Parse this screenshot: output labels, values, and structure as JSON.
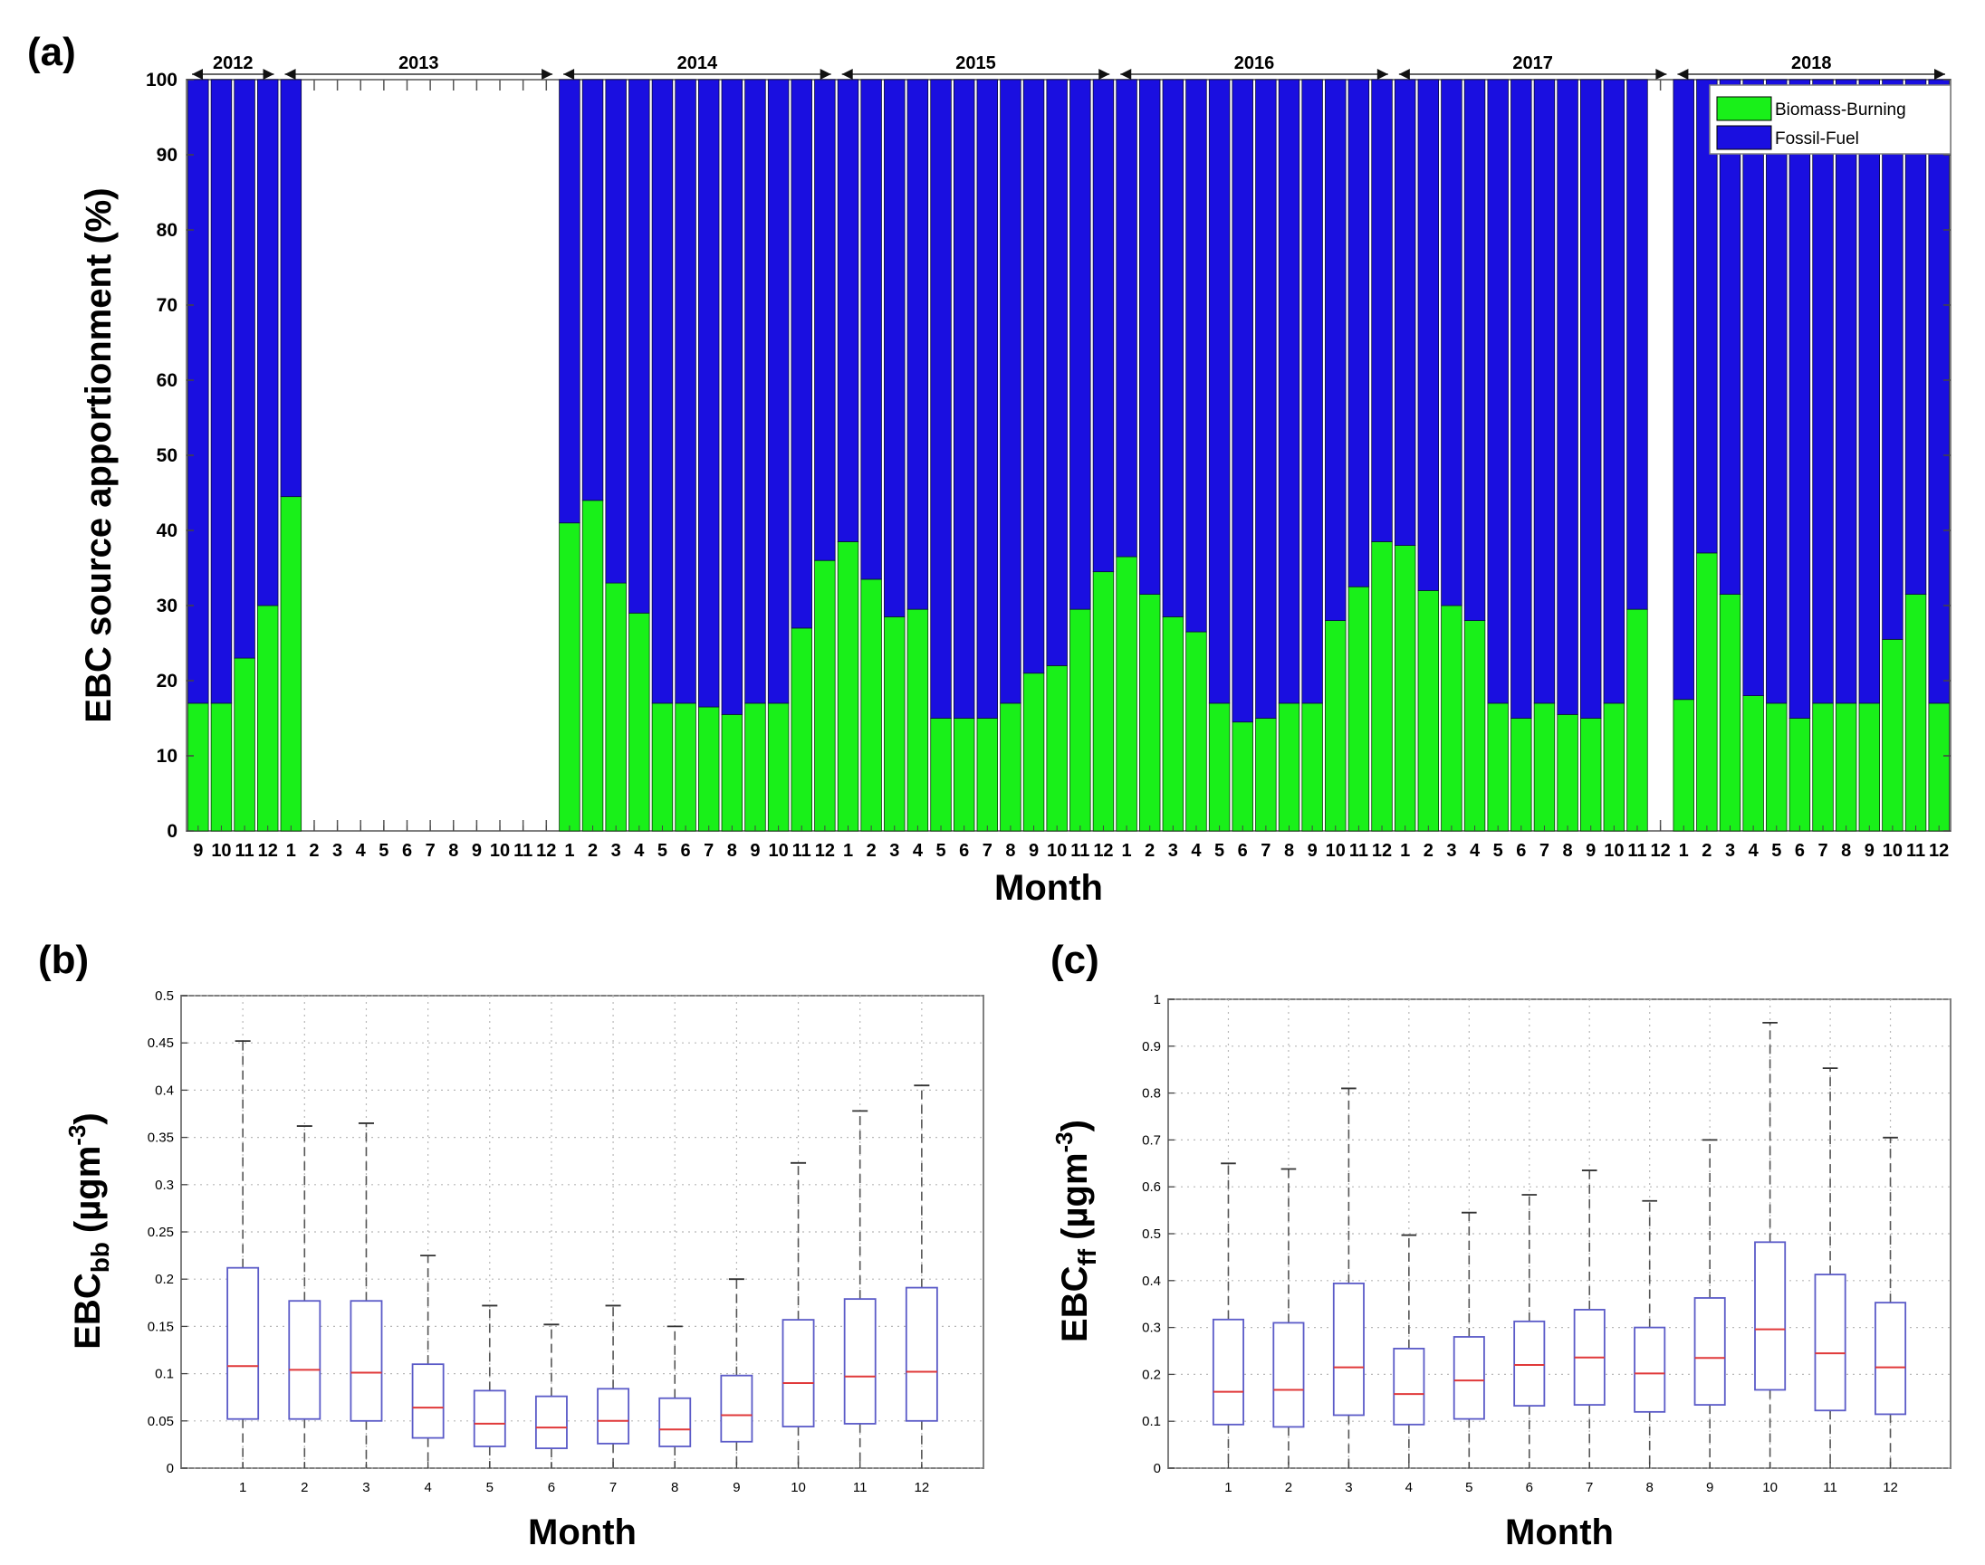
{
  "figure": {
    "panel_a_label": "(a)",
    "panel_b_label": "(b)",
    "panel_c_label": "(c)",
    "colors": {
      "biomass": "#19f019",
      "fossil": "#1a0fe0",
      "box": "#5b5bc8",
      "median": "#e0393a"
    }
  },
  "chart_data": [
    {
      "type": "bar",
      "stacked": true,
      "title": "",
      "ylabel": "EBC source apportionment (%)",
      "xlabel": "Month",
      "ylim": [
        0,
        100
      ],
      "yticks": [
        "0",
        "10",
        "20",
        "30",
        "40",
        "50",
        "60",
        "70",
        "80",
        "90",
        "100"
      ],
      "year_spans": [
        {
          "label": "2012",
          "start": 0,
          "end": 4
        },
        {
          "label": "2013",
          "start": 4,
          "end": 16
        },
        {
          "label": "2014",
          "start": 16,
          "end": 28
        },
        {
          "label": "2015",
          "start": 28,
          "end": 40
        },
        {
          "label": "2016",
          "start": 40,
          "end": 52
        },
        {
          "label": "2017",
          "start": 52,
          "end": 64
        },
        {
          "label": "2018",
          "start": 64,
          "end": 76
        }
      ],
      "categories": [
        "9",
        "10",
        "11",
        "12",
        "1",
        "2",
        "3",
        "4",
        "5",
        "6",
        "7",
        "8",
        "9",
        "10",
        "11",
        "12",
        "1",
        "2",
        "3",
        "4",
        "5",
        "6",
        "7",
        "8",
        "9",
        "10",
        "11",
        "12",
        "1",
        "2",
        "3",
        "4",
        "5",
        "6",
        "7",
        "8",
        "9",
        "10",
        "11",
        "12",
        "1",
        "2",
        "3",
        "4",
        "5",
        "6",
        "7",
        "8",
        "9",
        "10",
        "11",
        "12",
        "1",
        "2",
        "3",
        "4",
        "5",
        "6",
        "7",
        "8",
        "9",
        "10",
        "11",
        "12",
        "1",
        "2",
        "3",
        "4",
        "5",
        "6",
        "7",
        "8",
        "9",
        "10",
        "11",
        "12"
      ],
      "series": [
        {
          "name": "Biomass-Burning",
          "values": [
            17,
            17,
            23,
            30,
            44.5,
            null,
            null,
            null,
            null,
            null,
            null,
            null,
            null,
            null,
            null,
            null,
            41,
            44,
            33,
            29,
            17,
            17,
            16.5,
            15.5,
            17,
            17,
            27,
            36,
            38.5,
            33.5,
            28.5,
            29.5,
            15,
            15,
            15,
            17,
            21,
            22,
            29.5,
            34.5,
            36.5,
            31.5,
            28.5,
            26.5,
            17,
            14.5,
            15,
            17,
            17,
            28,
            32.5,
            38.5,
            38,
            32,
            30,
            28,
            17,
            15,
            17,
            15.5,
            15,
            17,
            29.5,
            null,
            17.5,
            37,
            31.5,
            18,
            17,
            15,
            17,
            17,
            17,
            25.5,
            31.5,
            17
          ]
        },
        {
          "name": "Fossil-Fuel",
          "values": [
            83,
            83,
            77,
            70,
            55.5,
            null,
            null,
            null,
            null,
            null,
            null,
            null,
            null,
            null,
            null,
            null,
            59,
            56,
            67,
            71,
            83,
            83,
            83.5,
            84.5,
            83,
            83,
            73,
            64,
            61.5,
            66.5,
            71.5,
            70.5,
            85,
            85,
            85,
            83,
            79,
            78,
            70.5,
            65.5,
            63.5,
            68.5,
            71.5,
            73.5,
            83,
            85.5,
            85,
            83,
            83,
            72,
            67.5,
            61.5,
            62,
            68,
            70,
            72,
            83,
            85,
            83,
            84.5,
            85,
            83,
            70.5,
            null,
            82.5,
            63,
            68.5,
            82,
            83,
            85,
            83,
            83,
            83,
            74.5,
            68.5,
            83
          ]
        }
      ]
    },
    {
      "type": "box",
      "title": "",
      "ylabel": "EBCbb (µgm-3)",
      "ylabel_main": "EBC",
      "ylabel_sub": "bb",
      "ylabel_unit": "(µgm",
      "ylabel_sup": "-3",
      "ylabel_close": ")",
      "xlabel": "Month",
      "ylim": [
        0,
        0.5
      ],
      "yticks": [
        "0",
        "0.05",
        "0.1",
        "0.15",
        "0.2",
        "0.25",
        "0.3",
        "0.35",
        "0.4",
        "0.45",
        "0.5"
      ],
      "categories": [
        "1",
        "2",
        "3",
        "4",
        "5",
        "6",
        "7",
        "8",
        "9",
        "10",
        "11",
        "12"
      ],
      "boxes": [
        {
          "whisker_low": 0.0,
          "q1": 0.052,
          "median": 0.108,
          "q3": 0.212,
          "whisker_high": 0.452
        },
        {
          "whisker_low": 0.0,
          "q1": 0.052,
          "median": 0.104,
          "q3": 0.177,
          "whisker_high": 0.362
        },
        {
          "whisker_low": 0.0,
          "q1": 0.05,
          "median": 0.101,
          "q3": 0.177,
          "whisker_high": 0.365
        },
        {
          "whisker_low": 0.0,
          "q1": 0.032,
          "median": 0.064,
          "q3": 0.11,
          "whisker_high": 0.225
        },
        {
          "whisker_low": 0.0,
          "q1": 0.023,
          "median": 0.047,
          "q3": 0.082,
          "whisker_high": 0.172
        },
        {
          "whisker_low": 0.0,
          "q1": 0.021,
          "median": 0.043,
          "q3": 0.076,
          "whisker_high": 0.152
        },
        {
          "whisker_low": 0.0,
          "q1": 0.026,
          "median": 0.05,
          "q3": 0.084,
          "whisker_high": 0.172
        },
        {
          "whisker_low": 0.0,
          "q1": 0.023,
          "median": 0.041,
          "q3": 0.074,
          "whisker_high": 0.15
        },
        {
          "whisker_low": 0.0,
          "q1": 0.028,
          "median": 0.056,
          "q3": 0.098,
          "whisker_high": 0.2
        },
        {
          "whisker_low": 0.0,
          "q1": 0.044,
          "median": 0.09,
          "q3": 0.157,
          "whisker_high": 0.323
        },
        {
          "whisker_low": 0.0,
          "q1": 0.047,
          "median": 0.097,
          "q3": 0.179,
          "whisker_high": 0.378
        },
        {
          "whisker_low": 0.0,
          "q1": 0.05,
          "median": 0.102,
          "q3": 0.191,
          "whisker_high": 0.405
        }
      ]
    },
    {
      "type": "box",
      "title": "",
      "ylabel": "EBCff (µgm-3)",
      "ylabel_main": "EBC",
      "ylabel_sub": "ff",
      "ylabel_unit": "(µgm",
      "ylabel_sup": "-3",
      "ylabel_close": ")",
      "xlabel": "Month",
      "ylim": [
        0,
        1
      ],
      "yticks": [
        "0",
        "0.1",
        "0.2",
        "0.3",
        "0.4",
        "0.5",
        "0.6",
        "0.7",
        "0.8",
        "0.9",
        "1"
      ],
      "categories": [
        "1",
        "2",
        "3",
        "4",
        "5",
        "6",
        "7",
        "8",
        "9",
        "10",
        "11",
        "12"
      ],
      "boxes": [
        {
          "whisker_low": 0.0,
          "q1": 0.093,
          "median": 0.163,
          "q3": 0.317,
          "whisker_high": 0.65
        },
        {
          "whisker_low": 0.0,
          "q1": 0.088,
          "median": 0.167,
          "q3": 0.31,
          "whisker_high": 0.638
        },
        {
          "whisker_low": 0.0,
          "q1": 0.113,
          "median": 0.215,
          "q3": 0.394,
          "whisker_high": 0.81
        },
        {
          "whisker_low": 0.0,
          "q1": 0.093,
          "median": 0.158,
          "q3": 0.255,
          "whisker_high": 0.497
        },
        {
          "whisker_low": 0.0,
          "q1": 0.105,
          "median": 0.187,
          "q3": 0.28,
          "whisker_high": 0.545
        },
        {
          "whisker_low": 0.0,
          "q1": 0.133,
          "median": 0.22,
          "q3": 0.313,
          "whisker_high": 0.583
        },
        {
          "whisker_low": 0.0,
          "q1": 0.135,
          "median": 0.236,
          "q3": 0.338,
          "whisker_high": 0.635
        },
        {
          "whisker_low": 0.0,
          "q1": 0.12,
          "median": 0.202,
          "q3": 0.3,
          "whisker_high": 0.57
        },
        {
          "whisker_low": 0.0,
          "q1": 0.135,
          "median": 0.235,
          "q3": 0.363,
          "whisker_high": 0.7
        },
        {
          "whisker_low": 0.0,
          "q1": 0.167,
          "median": 0.296,
          "q3": 0.482,
          "whisker_high": 0.95
        },
        {
          "whisker_low": 0.0,
          "q1": 0.123,
          "median": 0.245,
          "q3": 0.413,
          "whisker_high": 0.853
        },
        {
          "whisker_low": 0.0,
          "q1": 0.115,
          "median": 0.215,
          "q3": 0.353,
          "whisker_high": 0.705
        }
      ]
    }
  ]
}
